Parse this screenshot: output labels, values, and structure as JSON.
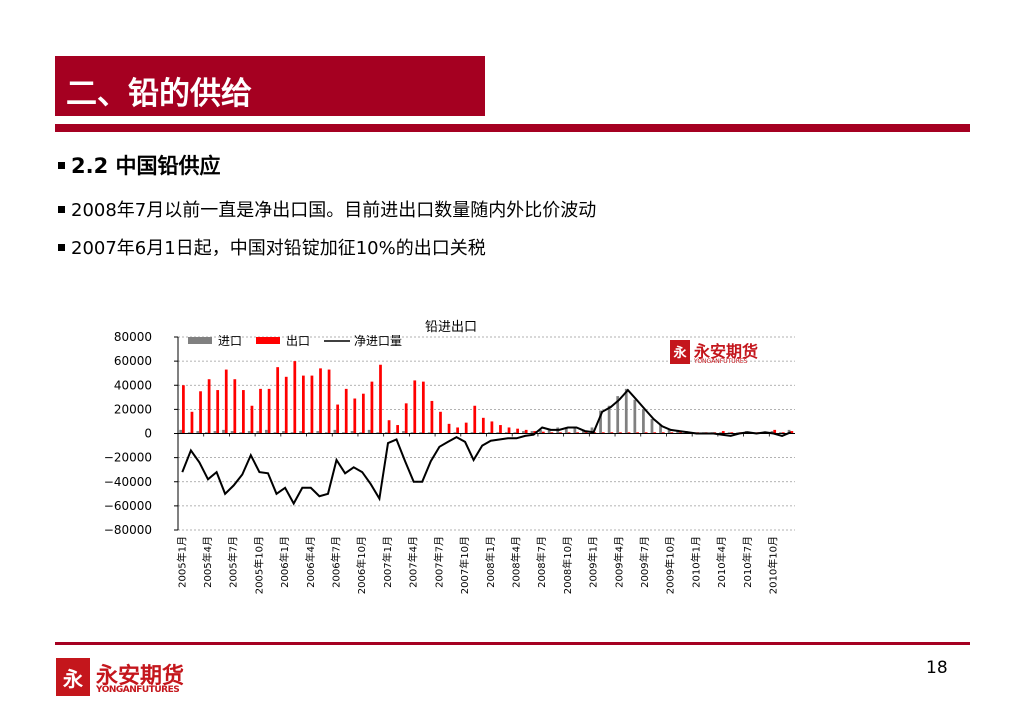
{
  "slide": {
    "title": "二、铅的供给",
    "page_number": "18",
    "accent_color": "#a50021"
  },
  "bullets": [
    "2.2 中国铅供应",
    "2008年7月以前一直是净出口国。目前进出口数量随内外比价波动",
    "2007年6月1日起，中国对铅锭加征10%的出口关税"
  ],
  "logo": {
    "mark": "永",
    "name_cn": "永安期货",
    "name_en": "YONGANFUTURES"
  },
  "chart_data": {
    "type": "bar",
    "title": "铅进出口",
    "ylim": [
      -80000,
      80000
    ],
    "yticks": [
      80000,
      60000,
      40000,
      20000,
      0,
      -20000,
      -40000,
      -60000,
      -80000
    ],
    "ytick_labels": [
      "80000",
      "60000",
      "40000",
      "20000",
      "0",
      "−20000",
      "−40000",
      "−60000",
      "−80000"
    ],
    "x_tick_labels": [
      "2005年1月",
      "2005年4月",
      "2005年7月",
      "2005年10月",
      "2006年1月",
      "2006年4月",
      "2006年7月",
      "2006年10月",
      "2007年1月",
      "2007年4月",
      "2007年7月",
      "2007年10月",
      "2008年1月",
      "2008年4月",
      "2008年7月",
      "2008年10月",
      "2009年1月",
      "2009年4月",
      "2009年7月",
      "2009年10月",
      "2010年1月",
      "2010年4月",
      "2010年7月",
      "2010年10月"
    ],
    "grid": true,
    "legend_position": "top-left",
    "series": [
      {
        "name": "进口",
        "type": "bar",
        "color": "#808080",
        "values": [
          3000,
          1000,
          2000,
          1000,
          2000,
          3000,
          2000,
          1000,
          2000,
          2000,
          3000,
          1000,
          2000,
          1000,
          2000,
          1000,
          2000,
          1000,
          3000,
          1000,
          2000,
          1000,
          3000,
          1000,
          1000,
          1000,
          2000,
          1000,
          1000,
          1000,
          500,
          500,
          1000,
          500,
          1000,
          1000,
          1000,
          1000,
          1000,
          1000,
          2000,
          2000,
          3000,
          4000,
          5000,
          5000,
          5000,
          3000,
          5000,
          19000,
          23000,
          31000,
          37000,
          28000,
          20000,
          12000,
          7000,
          4000,
          3000,
          2000,
          1000,
          1000,
          1000,
          1000,
          1000,
          1000,
          2000,
          1000,
          1000,
          2000,
          1000,
          3000
        ]
      },
      {
        "name": "出口",
        "type": "bar",
        "color": "#ff0000",
        "values": [
          40000,
          18000,
          35000,
          45000,
          36000,
          53000,
          45000,
          36000,
          23000,
          37000,
          37000,
          55000,
          47000,
          60000,
          48000,
          48000,
          54000,
          53000,
          24000,
          37000,
          29000,
          33000,
          43000,
          57000,
          11000,
          7000,
          25000,
          44000,
          43000,
          27000,
          18000,
          8000,
          5000,
          9000,
          23000,
          13000,
          10000,
          7000,
          5000,
          4000,
          3000,
          2000,
          1500,
          1000,
          1000,
          1000,
          1000,
          1000,
          1000,
          1000,
          1000,
          1000,
          1000,
          1000,
          1000,
          1000,
          1000,
          1000,
          1000,
          1000,
          1000,
          1000,
          1000,
          2000,
          1000,
          1000,
          1000,
          1000,
          1000,
          3000,
          1000,
          2000
        ]
      },
      {
        "name": "净进口量",
        "type": "line",
        "color": "#000000",
        "values": [
          -32000,
          -14000,
          -24000,
          -38000,
          -32000,
          -50000,
          -43000,
          -34000,
          -18000,
          -32000,
          -33000,
          -50000,
          -45000,
          -58000,
          -45000,
          -45000,
          -52000,
          -50000,
          -22000,
          -33000,
          -28000,
          -32000,
          -42000,
          -54000,
          -8000,
          -5000,
          -23000,
          -40000,
          -40000,
          -23000,
          -11000,
          -7000,
          -3000,
          -7000,
          -22000,
          -10000,
          -6000,
          -5000,
          -4000,
          -4000,
          -2000,
          -1000,
          5000,
          3000,
          3000,
          5000,
          5000,
          2000,
          1000,
          18000,
          22000,
          28000,
          36000,
          28000,
          20000,
          12000,
          6000,
          3000,
          2000,
          1000,
          0,
          0,
          0,
          -1000,
          -2000,
          0,
          1000,
          0,
          1000,
          0,
          -2000,
          1000
        ]
      }
    ]
  }
}
